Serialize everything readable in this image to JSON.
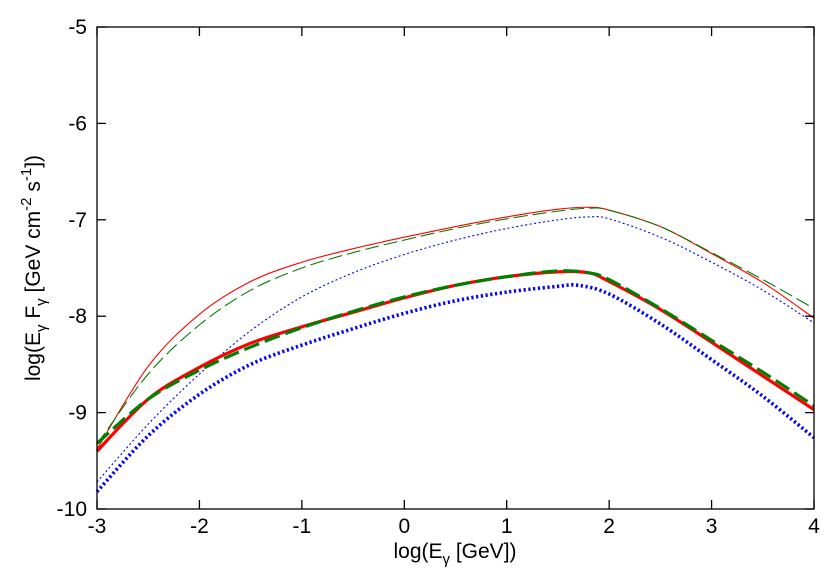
{
  "chart_data": {
    "type": "line",
    "xlim": [
      -3,
      4
    ],
    "ylim": [
      -10,
      -5
    ],
    "x_ticks": [
      -3,
      -2,
      -1,
      0,
      1,
      2,
      3,
      4
    ],
    "y_ticks": [
      -10,
      -9,
      -8,
      -7,
      -6,
      -5
    ],
    "xlabel": {
      "pre": "log(E",
      "sub": "γ",
      "post": " [GeV])"
    },
    "ylabel": {
      "p1": "log(E",
      "s1": "γ",
      "p2": " F",
      "s2": "γ",
      "p3": " [GeV cm",
      "e1": "-2",
      "p4": " s",
      "e2": "-1",
      "p5": "])"
    },
    "grid": false,
    "legend": "none",
    "series": [
      {
        "color": "#ff0000",
        "style": "solid",
        "weight": "thin",
        "x": [
          -3,
          -2.5,
          -2,
          -1.5,
          -1,
          -0.5,
          0,
          0.5,
          1,
          1.5,
          1.8,
          2,
          2.5,
          3,
          3.5,
          4
        ],
        "y": [
          -9.38,
          -8.52,
          -7.98,
          -7.64,
          -7.44,
          -7.3,
          -7.18,
          -7.07,
          -6.97,
          -6.89,
          -6.87,
          -6.9,
          -7.07,
          -7.35,
          -7.65,
          -8.02
        ]
      },
      {
        "color": "#008000",
        "style": "dashed",
        "weight": "thin",
        "x": [
          -3,
          -2.5,
          -2,
          -1.5,
          -1,
          -0.5,
          0,
          0.5,
          1,
          1.5,
          1.8,
          2,
          2.5,
          3,
          3.5,
          4
        ],
        "y": [
          -9.33,
          -8.6,
          -8.09,
          -7.73,
          -7.5,
          -7.34,
          -7.21,
          -7.09,
          -6.99,
          -6.91,
          -6.88,
          -6.9,
          -7.07,
          -7.34,
          -7.62,
          -7.92
        ]
      },
      {
        "color": "#0000ff",
        "style": "dotted",
        "weight": "thin",
        "x": [
          -3,
          -2.5,
          -2,
          -1.5,
          -1,
          -0.5,
          0,
          0.5,
          1,
          1.5,
          1.8,
          2,
          2.5,
          3,
          3.5,
          4
        ],
        "y": [
          -9.72,
          -9.12,
          -8.6,
          -8.15,
          -7.8,
          -7.55,
          -7.36,
          -7.21,
          -7.09,
          -7.0,
          -6.97,
          -6.99,
          -7.18,
          -7.44,
          -7.73,
          -8.07
        ]
      },
      {
        "color": "#ff0000",
        "style": "solid",
        "weight": "thick",
        "x": [
          -3,
          -2.5,
          -2,
          -1.5,
          -1,
          -0.5,
          0,
          0.5,
          1,
          1.5,
          1.8,
          2,
          2.5,
          3,
          3.5,
          4
        ],
        "y": [
          -9.4,
          -8.86,
          -8.53,
          -8.28,
          -8.11,
          -7.96,
          -7.81,
          -7.68,
          -7.59,
          -7.54,
          -7.55,
          -7.64,
          -7.93,
          -8.27,
          -8.62,
          -8.97
        ]
      },
      {
        "color": "#008000",
        "style": "dashed",
        "weight": "thick",
        "x": [
          -3,
          -2.5,
          -2,
          -1.5,
          -1,
          -0.5,
          0,
          0.5,
          1,
          1.5,
          1.8,
          2,
          2.5,
          3,
          3.5,
          4
        ],
        "y": [
          -9.32,
          -8.86,
          -8.56,
          -8.32,
          -8.12,
          -7.95,
          -7.8,
          -7.68,
          -7.59,
          -7.53,
          -7.55,
          -7.62,
          -7.92,
          -8.25,
          -8.58,
          -8.93
        ]
      },
      {
        "color": "#0000ff",
        "style": "dotted",
        "weight": "thick",
        "x": [
          -3,
          -2.5,
          -2,
          -1.5,
          -1,
          -0.5,
          0,
          0.5,
          1,
          1.5,
          1.7,
          2,
          2.5,
          3,
          3.5,
          4
        ],
        "y": [
          -9.82,
          -9.24,
          -8.81,
          -8.5,
          -8.3,
          -8.13,
          -7.97,
          -7.84,
          -7.75,
          -7.69,
          -7.68,
          -7.77,
          -8.08,
          -8.45,
          -8.83,
          -9.26
        ]
      }
    ]
  }
}
